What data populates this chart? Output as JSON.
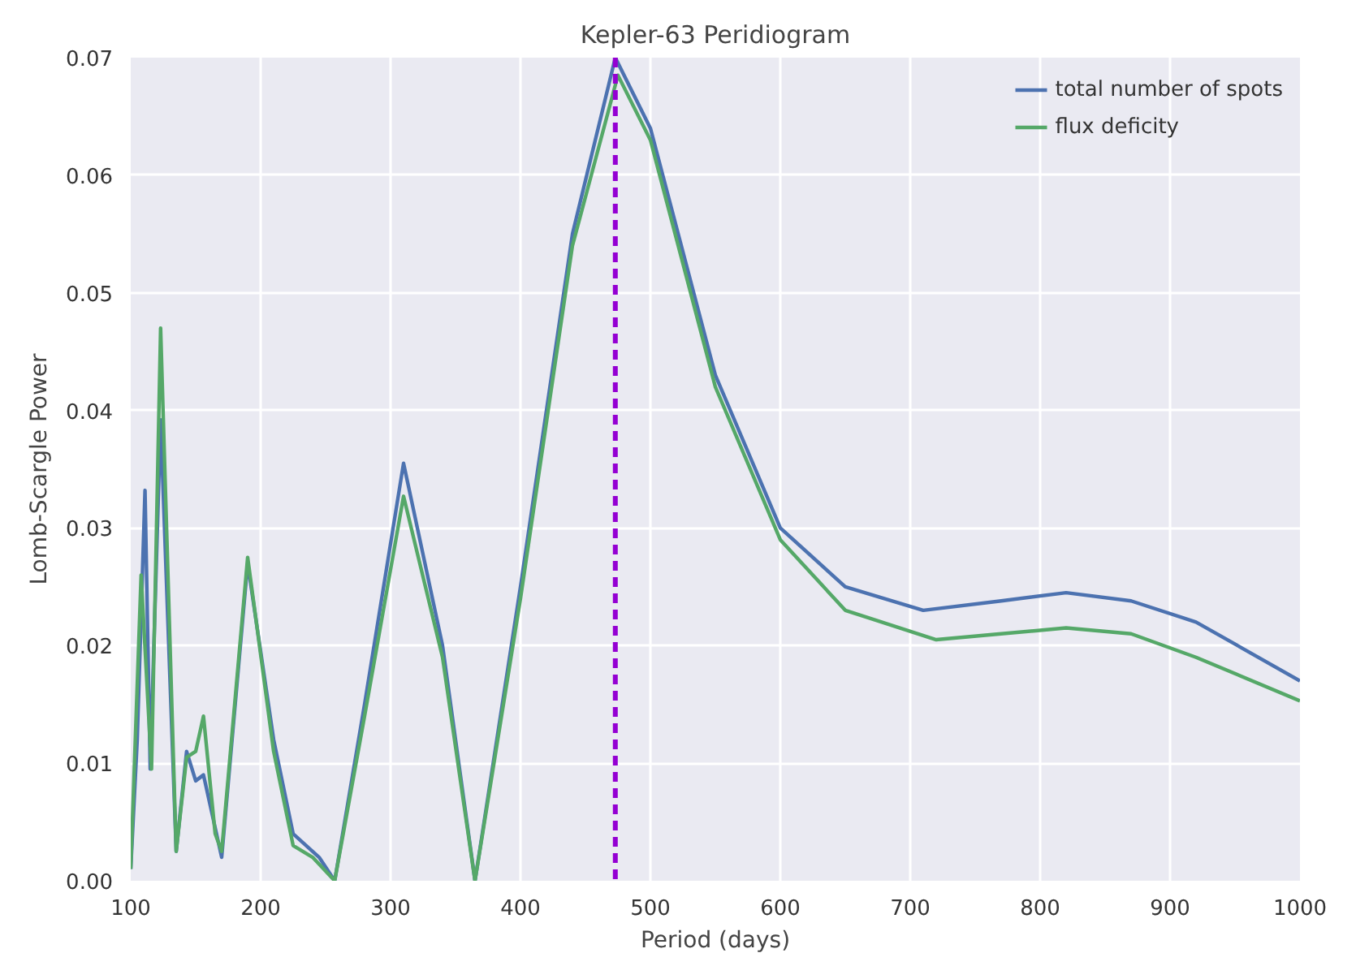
{
  "chart_data": {
    "type": "line",
    "title": "Kepler-63 Peridiogram",
    "xlabel": "Period (days)",
    "ylabel": "Lomb-Scargle Power",
    "xlim": [
      100,
      1000
    ],
    "ylim": [
      0,
      0.07
    ],
    "xticks": [
      100,
      200,
      300,
      400,
      500,
      600,
      700,
      800,
      900,
      1000
    ],
    "yticks": [
      {
        "value": 0,
        "label": "0.00"
      },
      {
        "value": 0.01,
        "label": "0.01"
      },
      {
        "value": 0.02,
        "label": "0.02"
      },
      {
        "value": 0.03,
        "label": "0.03"
      },
      {
        "value": 0.04,
        "label": "0.04"
      },
      {
        "value": 0.05,
        "label": "0.05"
      },
      {
        "value": 0.06,
        "label": "0.06"
      },
      {
        "value": 0.07,
        "label": "0.07"
      }
    ],
    "grid": true,
    "legend": "top right",
    "line_style": "solid",
    "marker": "none",
    "series": [
      {
        "name": "total number of spots",
        "color": "#4c72b0",
        "x": [
          100,
          105,
          111,
          115,
          123,
          135,
          143,
          150,
          156,
          170,
          190,
          210,
          225,
          245,
          257,
          280,
          310,
          340,
          365,
          400,
          440,
          473,
          500,
          550,
          600,
          650,
          710,
          770,
          820,
          870,
          920,
          1000
        ],
        "values": [
          0.001,
          0.012,
          0.0332,
          0.0095,
          0.0392,
          0.0025,
          0.011,
          0.0085,
          0.009,
          0.002,
          0.027,
          0.012,
          0.004,
          0.002,
          0.0,
          0.015,
          0.0355,
          0.02,
          0.0,
          0.025,
          0.055,
          0.07,
          0.064,
          0.043,
          0.03,
          0.025,
          0.023,
          0.0238,
          0.0245,
          0.0238,
          0.022,
          0.017
        ]
      },
      {
        "name": "flux deficity",
        "color": "#55a868",
        "x": [
          100,
          108,
          116,
          123,
          135,
          143,
          150,
          156,
          165,
          170,
          190,
          210,
          225,
          240,
          257,
          280,
          310,
          340,
          365,
          400,
          440,
          475,
          500,
          550,
          600,
          650,
          720,
          770,
          820,
          870,
          920,
          1000
        ],
        "values": [
          0.001,
          0.026,
          0.0095,
          0.047,
          0.0025,
          0.0105,
          0.011,
          0.014,
          0.004,
          0.0025,
          0.0275,
          0.011,
          0.003,
          0.002,
          0.0,
          0.014,
          0.0327,
          0.019,
          0.0,
          0.024,
          0.054,
          0.0685,
          0.063,
          0.042,
          0.029,
          0.023,
          0.0205,
          0.021,
          0.0215,
          0.021,
          0.019,
          0.0153
        ]
      }
    ],
    "ref_lines": [
      {
        "axis": "x",
        "value": 473,
        "label": null,
        "color": "#9400d3",
        "line_style": "dashed"
      }
    ]
  }
}
